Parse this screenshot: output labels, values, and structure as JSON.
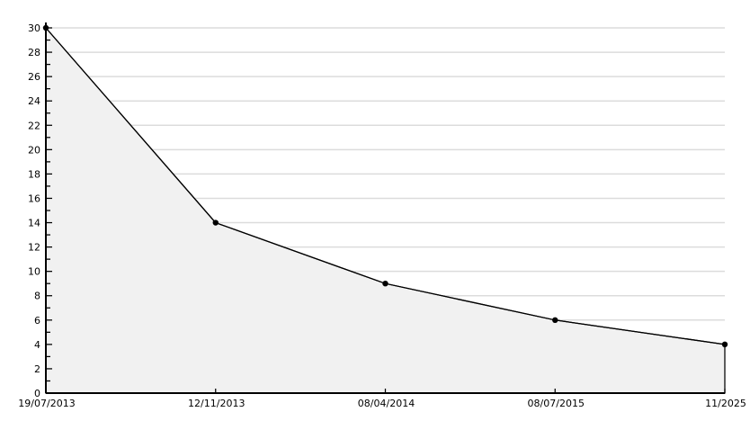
{
  "chart_data": {
    "type": "area",
    "categories": [
      "19/07/2013",
      "12/11/2013",
      "08/04/2014",
      "08/07/2015",
      "11/2025"
    ],
    "values": [
      30,
      14,
      9,
      6,
      4
    ],
    "title": "",
    "xlabel": "",
    "ylabel": "",
    "ylim": [
      0,
      30
    ],
    "y_major_step": 2,
    "y_minor_step": 1,
    "y_tick_labels": [
      "0",
      "2",
      "4",
      "6",
      "8",
      "10",
      "12",
      "14",
      "16",
      "18",
      "20",
      "22",
      "24",
      "26",
      "28",
      "30"
    ],
    "grid": "horizontal",
    "legend": "none",
    "colors": {
      "line": "#000000",
      "marker": "#000000",
      "area_fill": "#f1f1f1",
      "gridline": "#dcdcdc",
      "axis": "#000000",
      "text": "#000000",
      "background": "#ffffff"
    }
  }
}
